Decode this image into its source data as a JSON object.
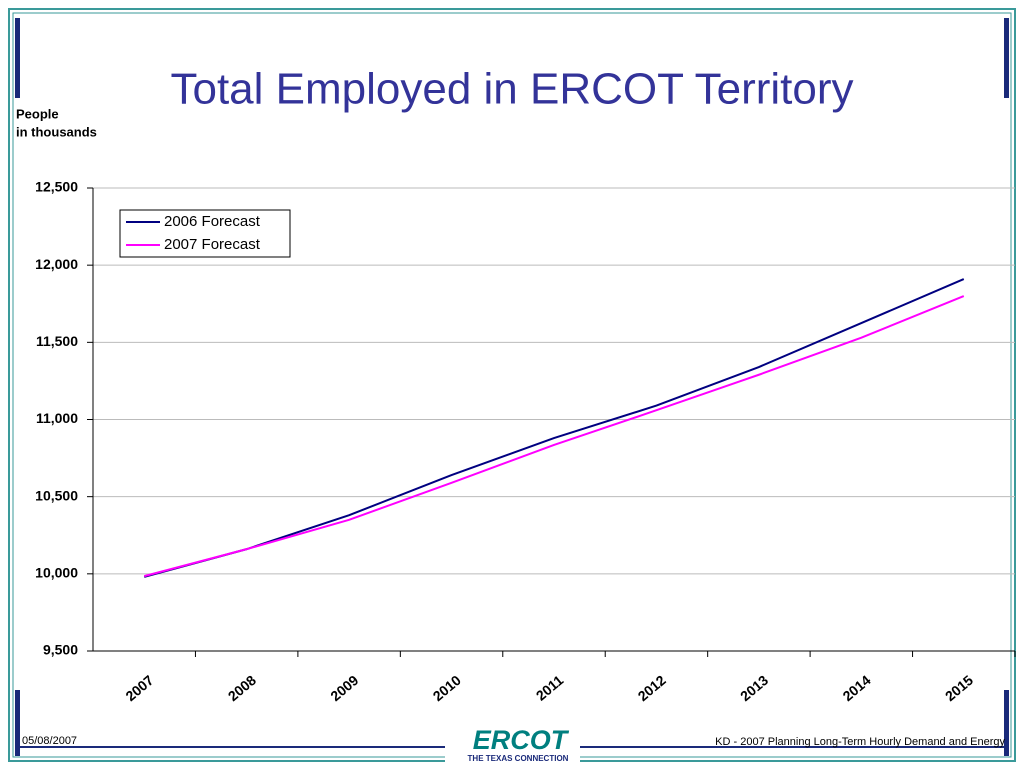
{
  "chart_data": {
    "type": "line",
    "title": "Total Employed in ERCOT Territory",
    "ylabel": [
      "People",
      "in thousands"
    ],
    "categories": [
      "2007",
      "2008",
      "2009",
      "2010",
      "2011",
      "2012",
      "2013",
      "2014",
      "2015"
    ],
    "series": [
      {
        "name": "2006 Forecast",
        "color": "#000080",
        "values": [
          9980,
          10160,
          10380,
          10640,
          10880,
          11090,
          11340,
          11625,
          11910
        ]
      },
      {
        "name": "2007 Forecast",
        "color": "#ff00ff",
        "values": [
          9985,
          10160,
          10350,
          10590,
          10835,
          11060,
          11290,
          11530,
          11800
        ]
      }
    ],
    "ylim": [
      9500,
      12500
    ],
    "yticks": [
      {
        "value": 9500,
        "label": "9,500"
      },
      {
        "value": 10000,
        "label": "10,000"
      },
      {
        "value": 10500,
        "label": "10,500"
      },
      {
        "value": 11000,
        "label": "11,000"
      },
      {
        "value": 11500,
        "label": "11,500"
      },
      {
        "value": 12000,
        "label": "12,000"
      },
      {
        "value": 12500,
        "label": "12,500"
      }
    ],
    "grid": true,
    "legend": "upper left"
  },
  "footer": {
    "date": "05/08/2007",
    "logo": "ERCOT",
    "logo_tagline": "THE TEXAS CONNECTION",
    "caption": "KD - 2007 Planning Long-Term Hourly Demand and Energy"
  }
}
